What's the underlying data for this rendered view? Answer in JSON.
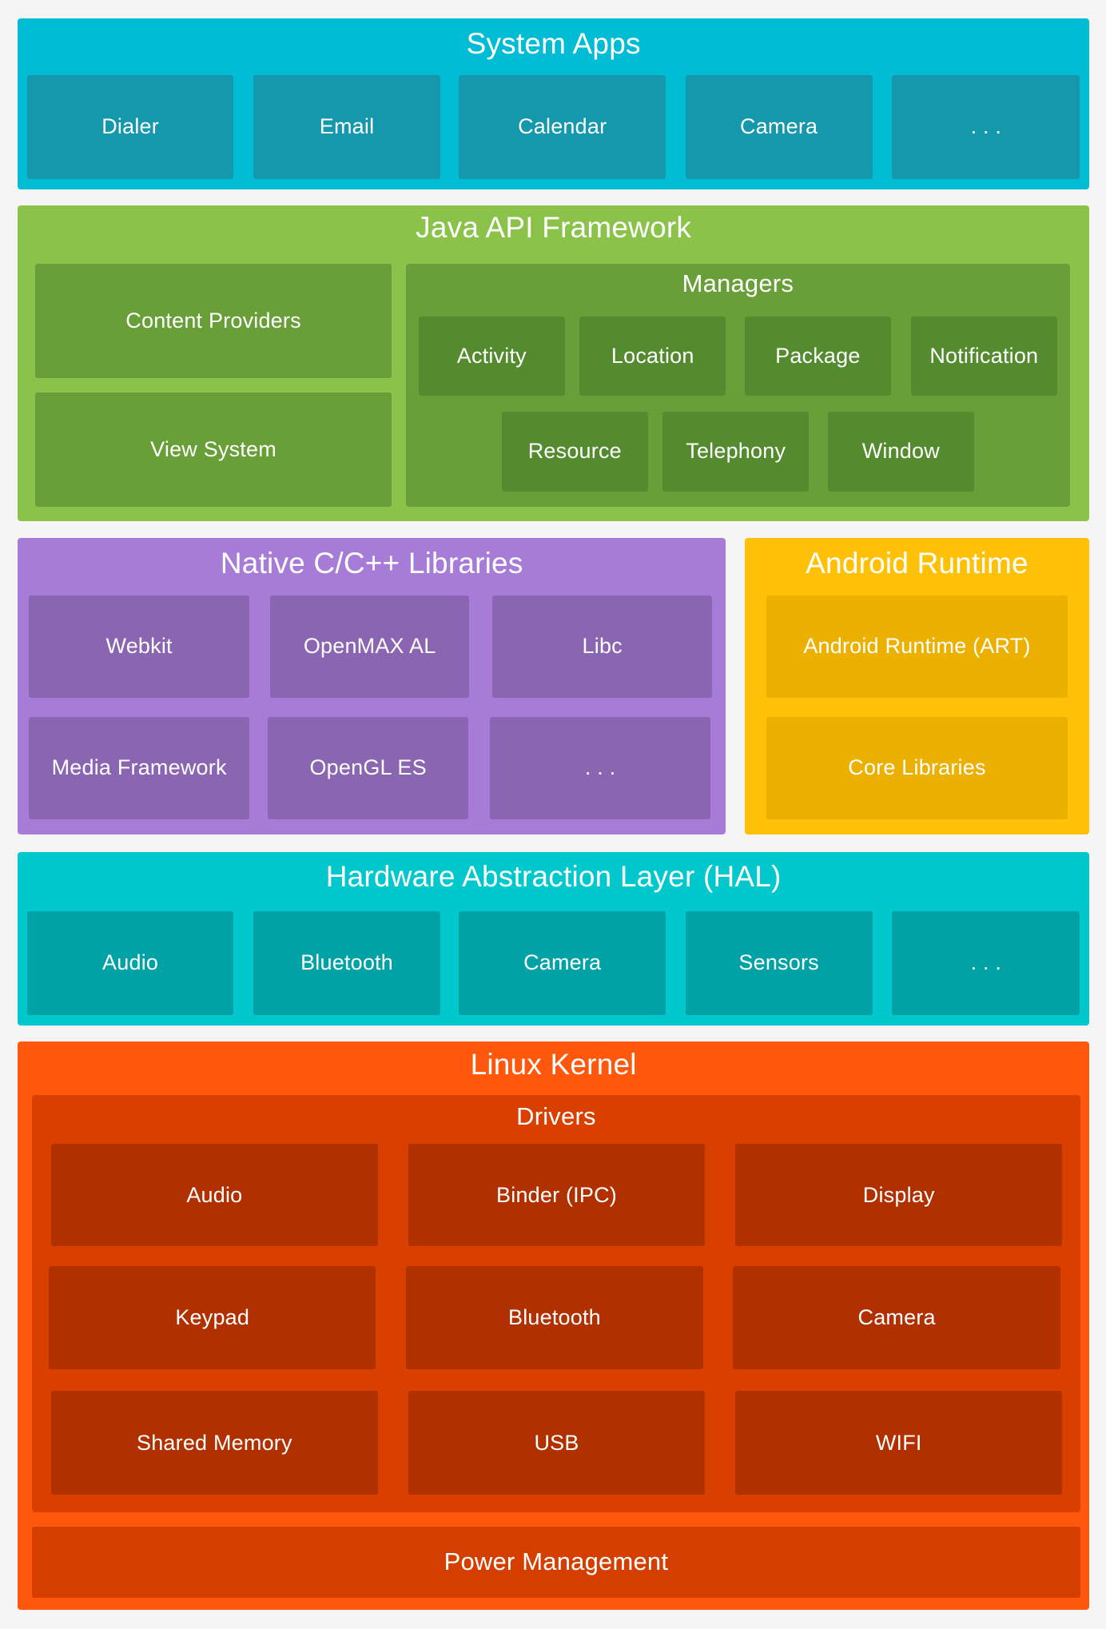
{
  "colors": {
    "background": "#f5f5f5",
    "system_apps": "#00bcd4",
    "system_apps_box": "#1598ac",
    "java": "#8bc34a",
    "java_inner": "#689f38",
    "java_box": "#558b2f",
    "native": "#a67cd7",
    "native_box": "#8a65b2",
    "runtime": "#ffc107",
    "runtime_box": "#ebb000",
    "hal": "#00c8cc",
    "hal_box": "#00a2a5",
    "kernel": "#ff570b",
    "kernel_inner": "#d94000",
    "kernel_box": "#b13000",
    "power": "#d43f00"
  },
  "system_apps": {
    "title": "System Apps",
    "items": [
      "Dialer",
      "Email",
      "Calendar",
      "Camera",
      ". . ."
    ]
  },
  "java_api": {
    "title": "Java API Framework",
    "content_providers": "Content Providers",
    "view_system": "View System",
    "managers": {
      "title": "Managers",
      "items": [
        "Activity",
        "Location",
        "Package",
        "Notification",
        "Resource",
        "Telephony",
        "Window"
      ]
    }
  },
  "native_libs": {
    "title": "Native C/C++ Libraries",
    "items": [
      "Webkit",
      "OpenMAX AL",
      "Libc",
      "Media Framework",
      "OpenGL ES",
      ". . ."
    ]
  },
  "android_runtime": {
    "title": "Android Runtime",
    "items": [
      "Android Runtime (ART)",
      "Core Libraries"
    ]
  },
  "hal": {
    "title": "Hardware Abstraction Layer (HAL)",
    "items": [
      "Audio",
      "Bluetooth",
      "Camera",
      "Sensors",
      ". . ."
    ]
  },
  "linux_kernel": {
    "title": "Linux Kernel",
    "drivers": {
      "title": "Drivers",
      "items": [
        "Audio",
        "Binder (IPC)",
        "Display",
        "Keypad",
        "Bluetooth",
        "Camera",
        "Shared Memory",
        "USB",
        "WIFI"
      ]
    },
    "power_management": "Power Management"
  }
}
